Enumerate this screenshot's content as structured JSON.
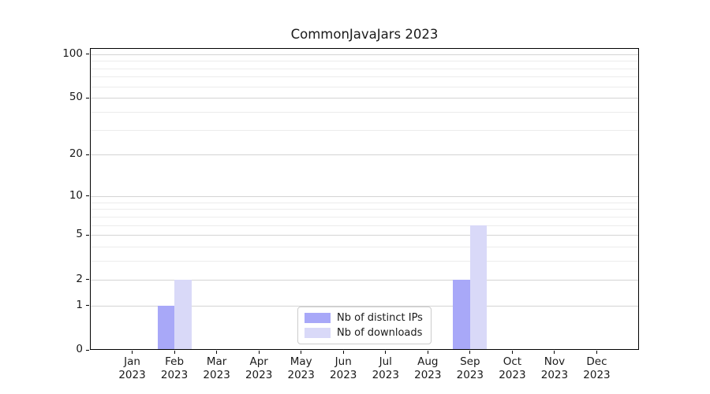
{
  "title": "CommonJavaJars 2023",
  "chart_data": {
    "type": "bar",
    "title": "CommonJavaJars 2023",
    "scale": "log1p",
    "categories": [
      {
        "month": "Jan",
        "year": "2023"
      },
      {
        "month": "Feb",
        "year": "2023"
      },
      {
        "month": "Mar",
        "year": "2023"
      },
      {
        "month": "Apr",
        "year": "2023"
      },
      {
        "month": "May",
        "year": "2023"
      },
      {
        "month": "Jun",
        "year": "2023"
      },
      {
        "month": "Jul",
        "year": "2023"
      },
      {
        "month": "Aug",
        "year": "2023"
      },
      {
        "month": "Sep",
        "year": "2023"
      },
      {
        "month": "Oct",
        "year": "2023"
      },
      {
        "month": "Nov",
        "year": "2023"
      },
      {
        "month": "Dec",
        "year": "2023"
      }
    ],
    "series": [
      {
        "name": "Nb of distinct IPs",
        "color": "#a8a8f8",
        "values": [
          0,
          1,
          0,
          0,
          0,
          0,
          0,
          0,
          2,
          0,
          0,
          0
        ]
      },
      {
        "name": "Nb of downloads",
        "color": "#d9d9f8",
        "values": [
          0,
          2,
          0,
          0,
          0,
          0,
          0,
          0,
          6,
          0,
          0,
          0
        ]
      }
    ],
    "xlabel": "",
    "ylabel": "",
    "ylim": [
      0,
      110
    ],
    "yticks_major": [
      0,
      1,
      2,
      5,
      10,
      20,
      50,
      100
    ],
    "yticks_minor": [
      3,
      4,
      6,
      7,
      8,
      9,
      30,
      40,
      60,
      70,
      80,
      90
    ],
    "grid": "on",
    "legend_position": "lower center"
  }
}
